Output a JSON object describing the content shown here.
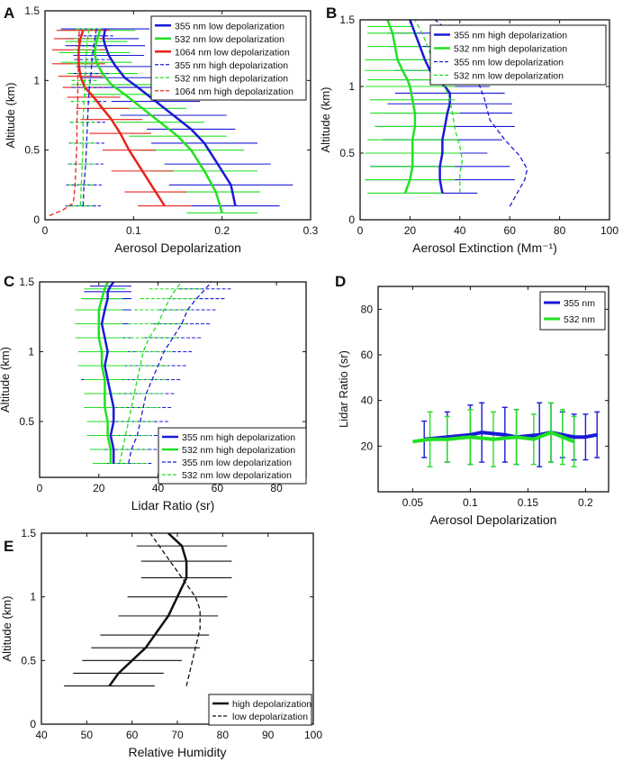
{
  "colors": {
    "blue": "#1a1ad6",
    "green": "#22e022",
    "red": "#e8231c",
    "black": "#111111"
  },
  "chart_data": [
    {
      "panel": "A",
      "type": "line",
      "title": "",
      "xlabel": "Aerosol Depolarization",
      "ylabel": "Altitude (km)",
      "xlim": [
        0,
        0.3
      ],
      "ylim": [
        0,
        1.5
      ],
      "xticks": [
        "0",
        "0.1",
        "0.2",
        "0.3"
      ],
      "yticks": [
        "0",
        "0.5",
        "1",
        "1.5"
      ],
      "legend_position": "top-right",
      "series": [
        {
          "name": "355 nm low depolarization",
          "color": "blue",
          "style": "solid",
          "width": 2.5,
          "x": [
            0.215,
            0.21,
            0.195,
            0.18,
            0.165,
            0.145,
            0.125,
            0.105,
            0.09,
            0.08,
            0.072,
            0.068,
            0.066,
            0.068
          ],
          "y": [
            0.1,
            0.25,
            0.4,
            0.55,
            0.65,
            0.75,
            0.85,
            0.95,
            1.02,
            1.1,
            1.18,
            1.25,
            1.3,
            1.37
          ],
          "err": [
            0.05,
            0.07,
            0.06,
            0.06,
            0.05,
            0.06,
            0.05,
            0.05,
            0.05,
            0.045,
            0.04,
            0.045,
            0.04,
            0.05
          ]
        },
        {
          "name": "532 nm low depolarization",
          "color": "green",
          "style": "solid",
          "width": 2.5,
          "x": [
            0.2,
            0.193,
            0.18,
            0.165,
            0.15,
            0.13,
            0.11,
            0.09,
            0.075,
            0.065,
            0.058,
            0.056,
            0.058,
            0.062
          ],
          "y": [
            0.05,
            0.2,
            0.35,
            0.5,
            0.6,
            0.7,
            0.8,
            0.9,
            0.97,
            1.05,
            1.13,
            1.2,
            1.28,
            1.36
          ],
          "err": [
            0.04,
            0.05,
            0.06,
            0.06,
            0.055,
            0.05,
            0.05,
            0.045,
            0.045,
            0.04,
            0.04,
            0.04,
            0.035,
            0.04
          ]
        },
        {
          "name": "1064 nm low depolarization",
          "color": "red",
          "style": "solid",
          "width": 2.5,
          "x": [
            0.135,
            0.125,
            0.11,
            0.095,
            0.085,
            0.075,
            0.065,
            0.055,
            0.045,
            0.04,
            0.038,
            0.038,
            0.04,
            0.043
          ],
          "y": [
            0.1,
            0.2,
            0.35,
            0.5,
            0.62,
            0.72,
            0.8,
            0.88,
            0.95,
            1.03,
            1.12,
            1.22,
            1.3,
            1.36
          ],
          "err": [
            0.03,
            0.035,
            0.035,
            0.03,
            0.035,
            0.035,
            0.03,
            0.03,
            0.025,
            0.025,
            0.03,
            0.03,
            0.03,
            0.03
          ]
        },
        {
          "name": "355 nm high depolarization",
          "color": "blue",
          "style": "dashed",
          "width": 1.3,
          "x": [
            0.043,
            0.044,
            0.046,
            0.047,
            0.048,
            0.049,
            0.05,
            0.052,
            0.053,
            0.055,
            0.057,
            0.058
          ],
          "y": [
            0.1,
            0.25,
            0.4,
            0.55,
            0.7,
            0.85,
            0.95,
            1.05,
            1.15,
            1.25,
            1.32,
            1.37
          ],
          "err": [
            0.02,
            0.02,
            0.02,
            0.02,
            0.02,
            0.02,
            0.02,
            0.02,
            0.02,
            0.02,
            0.02,
            0.02
          ]
        },
        {
          "name": "532 nm high depolarization",
          "color": "green",
          "style": "dashed",
          "width": 1.3,
          "x": [
            0.04,
            0.041,
            0.042,
            0.043,
            0.043,
            0.044,
            0.045,
            0.046,
            0.047,
            0.048,
            0.05
          ],
          "y": [
            0.1,
            0.25,
            0.4,
            0.55,
            0.7,
            0.85,
            1.0,
            1.12,
            1.22,
            1.3,
            1.37
          ],
          "err": [
            0.015,
            0.015,
            0.015,
            0.015,
            0.015,
            0.015,
            0.015,
            0.015,
            0.015,
            0.015,
            0.015
          ]
        },
        {
          "name": "1064 nm high depolarization",
          "color": "red",
          "style": "dashed",
          "width": 1.3,
          "x": [
            0.005,
            0.02,
            0.032,
            0.034,
            0.035,
            0.036,
            0.036,
            0.037,
            0.037,
            0.038,
            0.038,
            0.039
          ],
          "y": [
            0.03,
            0.07,
            0.12,
            0.25,
            0.4,
            0.55,
            0.7,
            0.85,
            1.0,
            1.15,
            1.3,
            1.37
          ],
          "err": [
            0,
            0,
            0,
            0,
            0,
            0,
            0,
            0,
            0,
            0,
            0,
            0
          ]
        }
      ]
    },
    {
      "panel": "B",
      "type": "line",
      "title": "",
      "xlabel": "Aerosol Extinction (Mm⁻¹)",
      "ylabel": "Altitude (km)",
      "xlim": [
        0,
        100
      ],
      "ylim": [
        0,
        1.5
      ],
      "xticks": [
        "0",
        "20",
        "40",
        "60",
        "80",
        "100"
      ],
      "yticks": [
        "0",
        "0.5",
        "1",
        "1.5"
      ],
      "legend_position": "top-right",
      "series": [
        {
          "name": "355 nm high depolarization",
          "color": "blue",
          "style": "solid",
          "width": 2.5,
          "x": [
            33,
            32,
            32,
            33,
            33,
            34,
            35,
            36,
            36,
            34,
            31,
            28,
            26,
            24,
            22,
            20
          ],
          "y": [
            0.2,
            0.3,
            0.4,
            0.5,
            0.6,
            0.7,
            0.8,
            0.87,
            0.95,
            1.0,
            1.05,
            1.12,
            1.2,
            1.3,
            1.4,
            1.5
          ],
          "err": [
            14,
            30,
            28,
            18,
            24,
            28,
            26,
            25,
            22,
            18,
            15,
            14,
            13,
            12,
            11,
            10
          ]
        },
        {
          "name": "532 nm high depolarization",
          "color": "green",
          "style": "solid",
          "width": 2.5,
          "x": [
            18,
            20,
            21,
            21,
            21,
            22,
            22,
            21,
            20,
            19,
            17,
            15,
            14,
            13,
            12,
            11
          ],
          "y": [
            0.2,
            0.3,
            0.4,
            0.5,
            0.6,
            0.7,
            0.8,
            0.9,
            1.0,
            1.05,
            1.12,
            1.2,
            1.3,
            1.4,
            1.45,
            1.5
          ],
          "err": [
            15,
            18,
            17,
            19,
            18,
            16,
            18,
            17,
            18,
            16,
            15,
            13,
            11,
            10,
            9,
            8
          ]
        },
        {
          "name": "355 nm low depolarization",
          "color": "blue",
          "style": "dashed",
          "width": 1.3,
          "x": [
            60,
            66,
            67,
            64,
            58,
            52,
            50,
            48,
            47,
            45,
            42,
            40,
            38,
            35,
            32,
            30
          ],
          "y": [
            0.1,
            0.3,
            0.38,
            0.48,
            0.6,
            0.75,
            0.9,
            1.0,
            1.05,
            1.12,
            1.2,
            1.28,
            1.35,
            1.42,
            1.47,
            1.5
          ],
          "err": [
            0,
            0,
            0,
            0,
            0,
            0,
            0,
            0,
            0,
            0,
            0,
            0,
            0,
            0,
            0,
            0
          ]
        },
        {
          "name": "532 nm low depolarization",
          "color": "green",
          "style": "dashed",
          "width": 1.3,
          "x": [
            40,
            40,
            41,
            40,
            38,
            37,
            36,
            34,
            32,
            30,
            28,
            26,
            24,
            22
          ],
          "y": [
            0.2,
            0.35,
            0.45,
            0.55,
            0.68,
            0.8,
            0.9,
            1.0,
            1.08,
            1.15,
            1.25,
            1.35,
            1.43,
            1.5
          ],
          "err": [
            0,
            0,
            0,
            0,
            0,
            0,
            0,
            0,
            0,
            0,
            0,
            0,
            0,
            0
          ]
        }
      ]
    },
    {
      "panel": "C",
      "type": "line",
      "title": "",
      "xlabel": "Lidar Ratio (sr)",
      "ylabel": "Altitude (km)",
      "xlim": [
        0,
        90
      ],
      "ylim": [
        0.1,
        1.5
      ],
      "xticks": [
        "0",
        "20",
        "40",
        "60",
        "80"
      ],
      "yticks": [
        "0.5",
        "1",
        "1.5"
      ],
      "legend_position": "bottom-right",
      "series": [
        {
          "name": "355 nm high depolarization",
          "color": "blue",
          "style": "solid",
          "width": 2.5,
          "x": [
            25,
            25,
            24,
            25,
            25,
            24,
            23,
            22,
            23,
            22,
            21,
            22,
            23,
            23,
            24,
            25
          ],
          "y": [
            0.2,
            0.3,
            0.4,
            0.5,
            0.6,
            0.7,
            0.8,
            0.9,
            1.0,
            1.1,
            1.2,
            1.3,
            1.38,
            1.43,
            1.47,
            1.5
          ],
          "err": [
            7,
            8,
            8,
            8,
            9,
            9,
            9,
            9,
            9,
            9,
            9,
            9,
            8,
            8,
            7,
            7
          ]
        },
        {
          "name": "532 nm high depolarization",
          "color": "green",
          "style": "solid",
          "width": 2.5,
          "x": [
            24,
            24,
            23,
            23,
            22,
            22,
            22,
            21,
            21,
            20,
            20,
            20,
            21,
            22,
            23
          ],
          "y": [
            0.2,
            0.3,
            0.4,
            0.5,
            0.6,
            0.7,
            0.8,
            0.9,
            1.0,
            1.1,
            1.2,
            1.3,
            1.38,
            1.45,
            1.5
          ],
          "err": [
            6,
            7,
            7,
            7,
            7,
            7,
            7,
            8,
            8,
            8,
            8,
            8,
            7,
            7,
            6
          ]
        },
        {
          "name": "355 nm low depolarization",
          "color": "blue",
          "style": "dashed",
          "width": 1.3,
          "x": [
            30,
            31,
            33,
            34,
            35,
            36,
            38,
            40,
            42,
            45,
            48,
            50,
            53,
            56,
            58
          ],
          "y": [
            0.2,
            0.3,
            0.4,
            0.5,
            0.6,
            0.7,
            0.8,
            0.9,
            1.0,
            1.1,
            1.2,
            1.3,
            1.38,
            1.45,
            1.5
          ],
          "err": [
            8,
            9,
            9,
            10,
            10,
            10,
            10,
            10,
            10,
            10,
            10,
            10,
            10,
            9,
            9
          ]
        },
        {
          "name": "532 nm low depolarization",
          "color": "green",
          "style": "dashed",
          "width": 1.3,
          "x": [
            27,
            28,
            29,
            30,
            31,
            32,
            33,
            34,
            35,
            37,
            40,
            42,
            44,
            46,
            48
          ],
          "y": [
            0.2,
            0.3,
            0.4,
            0.5,
            0.6,
            0.7,
            0.8,
            0.9,
            1.0,
            1.1,
            1.2,
            1.3,
            1.38,
            1.45,
            1.5
          ],
          "err": [
            9,
            9,
            9,
            9,
            10,
            10,
            10,
            10,
            10,
            10,
            10,
            10,
            10,
            9,
            9
          ]
        }
      ]
    },
    {
      "panel": "D",
      "type": "line",
      "title": "",
      "xlabel": "Aerosol Depolarization",
      "ylabel": "Lidar Ratio (sr)",
      "xlim": [
        0.02,
        0.22
      ],
      "ylim": [
        0,
        90
      ],
      "xticks": [
        "0.05",
        "0.1",
        "0.15",
        "0.2"
      ],
      "yticks": [
        "20",
        "40",
        "60",
        "80"
      ],
      "legend_position": "top-right",
      "series": [
        {
          "name": "355 nm",
          "color": "blue",
          "style": "solid",
          "width": 4,
          "x": [
            0.06,
            0.08,
            0.1,
            0.11,
            0.13,
            0.14,
            0.16,
            0.17,
            0.18,
            0.19,
            0.2,
            0.21
          ],
          "y": [
            23,
            24,
            25,
            26,
            25,
            24,
            25,
            26,
            25,
            24,
            24,
            25
          ],
          "err": [
            8,
            11,
            13,
            13,
            12,
            12,
            14,
            13,
            10,
            10,
            10,
            10
          ]
        },
        {
          "name": "532 nm",
          "color": "green",
          "style": "solid",
          "width": 4,
          "x": [
            0.05,
            0.065,
            0.08,
            0.1,
            0.12,
            0.14,
            0.155,
            0.17,
            0.18,
            0.19
          ],
          "y": [
            22,
            23,
            23,
            24,
            23,
            24,
            23,
            26,
            24,
            22
          ],
          "err": [
            0,
            12,
            10,
            12,
            12,
            12,
            11,
            13,
            12,
            11
          ]
        }
      ]
    },
    {
      "panel": "E",
      "type": "line",
      "title": "",
      "xlabel": "Relative Humidity",
      "ylabel": "Altitude (km)",
      "xlim": [
        40,
        100
      ],
      "ylim": [
        0,
        1.5
      ],
      "xticks": [
        "40",
        "50",
        "60",
        "70",
        "80",
        "90",
        "100"
      ],
      "yticks": [
        "0",
        "0.5",
        "1",
        "1.5"
      ],
      "legend_position": "bottom-right",
      "series": [
        {
          "name": "high depolarization",
          "color": "black",
          "style": "solid",
          "width": 2.5,
          "x": [
            55,
            57,
            60,
            63,
            65,
            68,
            70,
            72,
            72,
            71,
            68
          ],
          "y": [
            0.3,
            0.4,
            0.5,
            0.6,
            0.7,
            0.85,
            1.0,
            1.15,
            1.28,
            1.4,
            1.5
          ],
          "err": [
            10,
            10,
            11,
            12,
            12,
            11,
            11,
            10,
            10,
            10,
            11
          ]
        },
        {
          "name": "low depolarization",
          "color": "black",
          "style": "dashed",
          "width": 1.3,
          "x": [
            72,
            73,
            74,
            75,
            75,
            74,
            72,
            70,
            68,
            66,
            64
          ],
          "y": [
            0.3,
            0.45,
            0.6,
            0.75,
            0.9,
            1.0,
            1.1,
            1.2,
            1.3,
            1.4,
            1.5
          ],
          "err": [
            0,
            0,
            0,
            0,
            0,
            0,
            0,
            0,
            0,
            0,
            0
          ]
        }
      ]
    }
  ]
}
